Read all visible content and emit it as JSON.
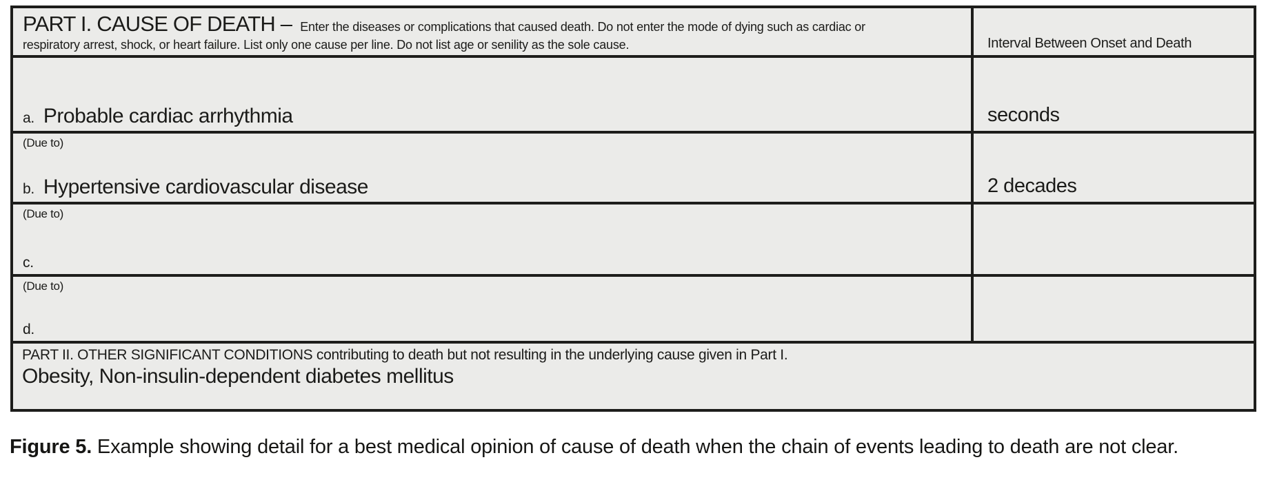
{
  "colors": {
    "cell_background": "#ebebe9",
    "border": "#1d1d1b",
    "text": "#1b1b19",
    "page_background": "#ffffff"
  },
  "form": {
    "part1": {
      "title": "PART I. CAUSE OF DEATH –",
      "instructions_line1": "Enter the diseases or complications that caused death. Do not enter the mode of dying such as cardiac or",
      "instructions_line2": "respiratory arrest, shock, or heart failure. List only one cause per line.  Do not list age or senility as the sole cause.",
      "interval_header": "Interval Between Onset and Death",
      "rows": [
        {
          "label": "a.",
          "due_to": "",
          "cause": "Probable cardiac arrhythmia",
          "interval": "seconds"
        },
        {
          "label": "b.",
          "due_to": "(Due to)",
          "cause": "Hypertensive cardiovascular disease",
          "interval": "2 decades"
        },
        {
          "label": "c.",
          "due_to": "(Due to)",
          "cause": "",
          "interval": ""
        },
        {
          "label": "d.",
          "due_to": "(Due to)",
          "cause": "",
          "interval": ""
        }
      ]
    },
    "part2": {
      "header": "PART II.  OTHER SIGNIFICANT CONDITIONS contributing to death but not resulting in the underlying cause given in Part I.",
      "entry": "Obesity, Non-insulin-dependent diabetes mellitus"
    }
  },
  "caption": {
    "label": "Figure 5.",
    "text": "Example showing detail for a best medical opinion of cause of death when the chain of events leading to death are not clear."
  }
}
